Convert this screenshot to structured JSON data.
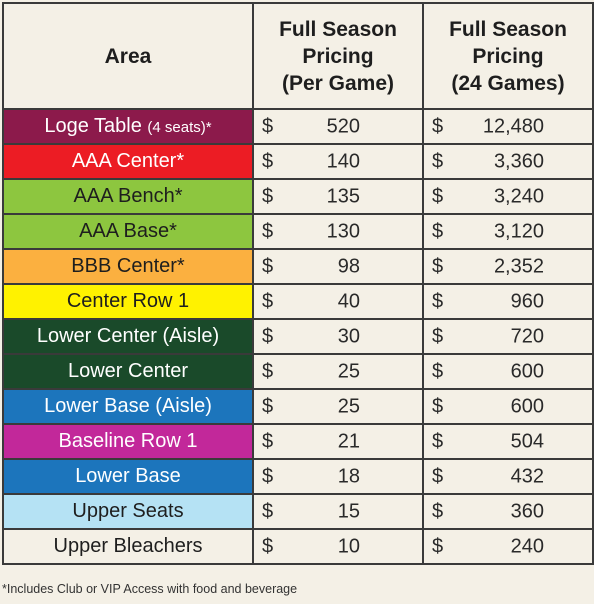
{
  "headers": {
    "area": "Area",
    "per_game": [
      "Full Season",
      "Pricing",
      "(Per Game)"
    ],
    "season": [
      "Full Season",
      "Pricing",
      "(24 Games)"
    ]
  },
  "rows": [
    {
      "area": "Loge Table",
      "note": "(4 seats)*",
      "cur1": "$",
      "per_game": "520",
      "cur2": "$",
      "season": "12,480",
      "bg": "#8c1a4b",
      "fg": "#ffffff"
    },
    {
      "area": "AAA Center*",
      "note": "",
      "cur1": "$",
      "per_game": "140",
      "cur2": "$",
      "season": "3,360",
      "bg": "#ec1c24",
      "fg": "#ffffff"
    },
    {
      "area": "AAA Bench*",
      "note": "",
      "cur1": "$",
      "per_game": "135",
      "cur2": "$",
      "season": "3,240",
      "bg": "#8dc63f",
      "fg": "#1e1e1e"
    },
    {
      "area": "AAA Base*",
      "note": "",
      "cur1": "$",
      "per_game": "130",
      "cur2": "$",
      "season": "3,120",
      "bg": "#8dc63f",
      "fg": "#1e1e1e"
    },
    {
      "area": "BBB Center*",
      "note": "",
      "cur1": "$",
      "per_game": "98",
      "cur2": "$",
      "season": "2,352",
      "bg": "#fbb040",
      "fg": "#1e1e1e"
    },
    {
      "area": "Center Row 1",
      "note": "",
      "cur1": "$",
      "per_game": "40",
      "cur2": "$",
      "season": "960",
      "bg": "#fff200",
      "fg": "#1e1e1e"
    },
    {
      "area": "Lower Center (Aisle)",
      "note": "",
      "cur1": "$",
      "per_game": "30",
      "cur2": "$",
      "season": "720",
      "bg": "#1a4a2a",
      "fg": "#ffffff"
    },
    {
      "area": "Lower Center",
      "note": "",
      "cur1": "$",
      "per_game": "25",
      "cur2": "$",
      "season": "600",
      "bg": "#1a4a2a",
      "fg": "#ffffff"
    },
    {
      "area": "Lower Base (Aisle)",
      "note": "",
      "cur1": "$",
      "per_game": "25",
      "cur2": "$",
      "season": "600",
      "bg": "#1c75bc",
      "fg": "#ffffff"
    },
    {
      "area": "Baseline Row 1",
      "note": "",
      "cur1": "$",
      "per_game": "21",
      "cur2": "$",
      "season": "504",
      "bg": "#c2289a",
      "fg": "#ffffff"
    },
    {
      "area": "Lower Base",
      "note": "",
      "cur1": "$",
      "per_game": "18",
      "cur2": "$",
      "season": "432",
      "bg": "#1c75bc",
      "fg": "#ffffff"
    },
    {
      "area": "Upper Seats",
      "note": "",
      "cur1": "$",
      "per_game": "15",
      "cur2": "$",
      "season": "360",
      "bg": "#b5e2f4",
      "fg": "#1e1e1e"
    },
    {
      "area": "Upper Bleachers",
      "note": "",
      "cur1": "$",
      "per_game": "10",
      "cur2": "$",
      "season": "240",
      "bg": "#f4f0e6",
      "fg": "#1e1e1e"
    }
  ],
  "footnote": "*Includes Club or VIP Access with food and beverage"
}
